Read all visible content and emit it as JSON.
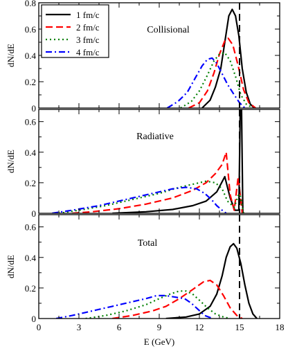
{
  "chart_data": [
    {
      "type": "line",
      "annotation": "Collisional",
      "ylabel": "dN/dE",
      "xlim": [
        0,
        18
      ],
      "ylim": [
        0,
        0.8
      ],
      "yticks": [
        0,
        0.2,
        0.4,
        0.6,
        0.8
      ],
      "ytick_labels": [
        "0",
        "0.2",
        "0.4",
        "0.6",
        "0.8"
      ],
      "series": [
        {
          "name": "1 fm/c",
          "color": "#000000",
          "dash": "solid",
          "x": [
            12.2,
            12.8,
            13.2,
            13.6,
            13.9,
            14.2,
            14.45,
            14.7,
            14.95,
            15.2,
            15.5,
            15.8,
            16.1
          ],
          "y": [
            0.0,
            0.06,
            0.16,
            0.3,
            0.5,
            0.7,
            0.75,
            0.7,
            0.55,
            0.3,
            0.12,
            0.03,
            0.0
          ]
        },
        {
          "name": "2 fm/c",
          "color": "#ff0000",
          "dash": "dashed",
          "x": [
            11.2,
            12.0,
            12.6,
            13.1,
            13.5,
            13.9,
            14.15,
            14.5,
            14.9,
            15.3,
            15.7,
            16.2
          ],
          "y": [
            0.0,
            0.04,
            0.13,
            0.27,
            0.41,
            0.51,
            0.53,
            0.48,
            0.32,
            0.14,
            0.04,
            0.0
          ]
        },
        {
          "name": "3 fm/c",
          "color": "#008000",
          "dash": "dotted",
          "x": [
            10.6,
            11.4,
            12.0,
            12.6,
            13.1,
            13.5,
            13.9,
            14.3,
            14.7,
            15.1,
            15.5,
            16.0
          ],
          "y": [
            0.0,
            0.05,
            0.13,
            0.25,
            0.36,
            0.41,
            0.42,
            0.36,
            0.24,
            0.1,
            0.03,
            0.0
          ]
        },
        {
          "name": "4 fm/c",
          "color": "#0000ff",
          "dash": "dashdot",
          "x": [
            9.6,
            10.4,
            11.1,
            11.7,
            12.2,
            12.6,
            12.95,
            13.3,
            13.7,
            14.1,
            14.6,
            15.0,
            15.4
          ],
          "y": [
            0.0,
            0.05,
            0.12,
            0.23,
            0.32,
            0.37,
            0.38,
            0.34,
            0.26,
            0.18,
            0.1,
            0.04,
            0.0
          ]
        }
      ]
    },
    {
      "type": "line",
      "annotation": "Radiative",
      "ylabel": "dN/dE",
      "xlim": [
        0,
        18
      ],
      "ylim": [
        0,
        0.68
      ],
      "yticks": [
        0,
        0.2,
        0.4,
        0.6
      ],
      "ytick_labels": [
        "0",
        "0.2",
        "0.4",
        "0.6"
      ],
      "series": [
        {
          "name": "1 fm/c",
          "color": "#000000",
          "dash": "solid",
          "x": [
            5.5,
            8,
            10,
            11.5,
            12.5,
            13.3,
            13.9,
            14.3,
            14.65,
            14.95,
            15.05,
            15.15,
            15.25
          ],
          "y": [
            0.0,
            0.01,
            0.025,
            0.05,
            0.08,
            0.14,
            0.24,
            0.1,
            0.02,
            0.02,
            0.68,
            0.68,
            0.0
          ]
        },
        {
          "name": "2 fm/c",
          "color": "#ff0000",
          "dash": "dashed",
          "x": [
            2.5,
            4,
            6,
            8,
            10,
            11.5,
            12.5,
            13.2,
            13.7,
            14.0,
            14.3,
            14.6,
            14.9,
            15.2
          ],
          "y": [
            0.0,
            0.01,
            0.03,
            0.06,
            0.1,
            0.15,
            0.2,
            0.26,
            0.32,
            0.4,
            0.12,
            0.02,
            0.24,
            0.0
          ]
        },
        {
          "name": "3 fm/c",
          "color": "#008000",
          "dash": "dotted",
          "x": [
            1.5,
            3,
            5,
            7,
            9,
            10.5,
            11.5,
            12.5,
            13.2,
            13.7,
            14.1,
            14.6,
            15.0,
            15.3
          ],
          "y": [
            0.0,
            0.02,
            0.05,
            0.09,
            0.13,
            0.17,
            0.19,
            0.21,
            0.2,
            0.16,
            0.08,
            0.04,
            0.14,
            0.0
          ]
        },
        {
          "name": "4 fm/c",
          "color": "#0000ff",
          "dash": "dashdot",
          "x": [
            1.0,
            2.5,
            4.5,
            6.5,
            8.5,
            10.0,
            11.0,
            11.8,
            12.4,
            12.9,
            13.3,
            13.7,
            14.0
          ],
          "y": [
            0.0,
            0.02,
            0.05,
            0.09,
            0.13,
            0.16,
            0.17,
            0.16,
            0.13,
            0.09,
            0.05,
            0.02,
            0.0
          ]
        }
      ]
    },
    {
      "type": "line",
      "annotation": "Total",
      "ylabel": "dN/dE",
      "xlabel": "E (GeV)",
      "xlim": [
        0,
        18
      ],
      "ylim": [
        0,
        0.68
      ],
      "yticks": [
        0,
        0.2,
        0.4,
        0.6
      ],
      "ytick_labels": [
        "0",
        "0.2",
        "0.4",
        "0.6"
      ],
      "xticks": [
        0,
        3,
        6,
        9,
        12,
        15,
        18
      ],
      "xtick_labels": [
        "0",
        "3",
        "6",
        "9",
        "12",
        "15",
        "18"
      ],
      "series": [
        {
          "name": "1 fm/c",
          "color": "#000000",
          "dash": "solid",
          "x": [
            9.5,
            11,
            12,
            12.8,
            13.3,
            13.7,
            14.0,
            14.3,
            14.55,
            14.8,
            15.1,
            15.4,
            15.7,
            16.0,
            16.3
          ],
          "y": [
            0.0,
            0.01,
            0.03,
            0.08,
            0.16,
            0.28,
            0.4,
            0.47,
            0.49,
            0.46,
            0.36,
            0.22,
            0.1,
            0.03,
            0.0
          ]
        },
        {
          "name": "2 fm/c",
          "color": "#ff0000",
          "dash": "dashed",
          "x": [
            5.5,
            7,
            8.5,
            9.5,
            10.5,
            11.5,
            12.3,
            12.8,
            13.3,
            13.8,
            14.3,
            14.8,
            15.2
          ],
          "y": [
            0.0,
            0.02,
            0.05,
            0.08,
            0.13,
            0.19,
            0.24,
            0.25,
            0.22,
            0.15,
            0.07,
            0.02,
            0.0
          ]
        },
        {
          "name": "3 fm/c",
          "color": "#008000",
          "dash": "dotted",
          "x": [
            3.5,
            5,
            6.5,
            8,
            9,
            9.8,
            10.5,
            11.0,
            11.5,
            12.0,
            12.6,
            13.2,
            13.8,
            14.3
          ],
          "y": [
            0.0,
            0.02,
            0.05,
            0.09,
            0.13,
            0.16,
            0.18,
            0.18,
            0.16,
            0.12,
            0.07,
            0.03,
            0.01,
            0.0
          ]
        },
        {
          "name": "4 fm/c",
          "color": "#0000ff",
          "dash": "dashdot",
          "x": [
            1.3,
            2.5,
            4,
            5.5,
            7,
            8,
            8.8,
            9.5,
            10.2,
            10.9,
            11.4,
            11.9,
            12.4,
            13.0
          ],
          "y": [
            0.0,
            0.02,
            0.05,
            0.08,
            0.11,
            0.13,
            0.15,
            0.15,
            0.14,
            0.13,
            0.1,
            0.06,
            0.02,
            0.0
          ]
        }
      ]
    }
  ]
}
